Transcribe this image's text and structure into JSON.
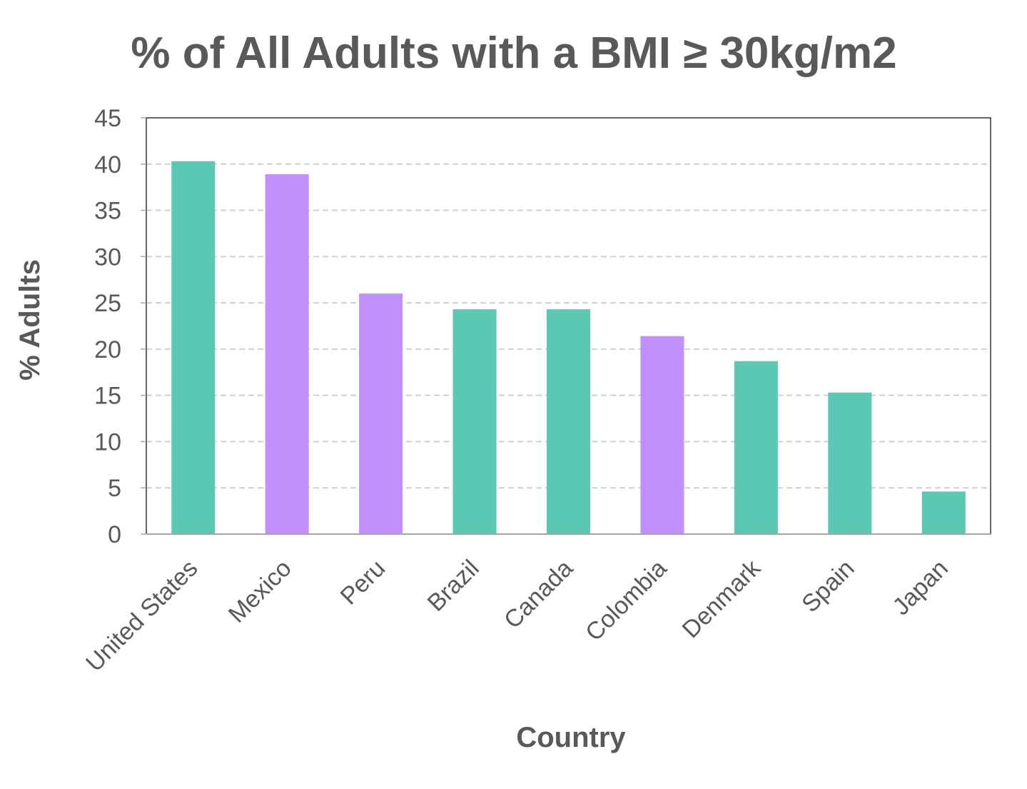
{
  "chart_data": {
    "type": "bar",
    "title": "% of All Adults with a BMI ≥ 30kg/m2",
    "xlabel": "Country",
    "ylabel": "% Adults",
    "ylim": [
      0,
      45
    ],
    "yticks": [
      0,
      5,
      10,
      15,
      20,
      25,
      30,
      35,
      40,
      45
    ],
    "grid": true,
    "categories": [
      "United States",
      "Mexico",
      "Peru",
      "Brazil",
      "Canada",
      "Colombia",
      "Denmark",
      "Spain",
      "Japan"
    ],
    "values": [
      40.3,
      38.9,
      26.0,
      24.3,
      24.3,
      21.4,
      18.7,
      15.3,
      4.6
    ],
    "colors": [
      "#5bc8b3",
      "#c190fd",
      "#c190fd",
      "#5bc8b3",
      "#5bc8b3",
      "#c190fd",
      "#5bc8b3",
      "#5bc8b3",
      "#5bc8b3"
    ]
  }
}
